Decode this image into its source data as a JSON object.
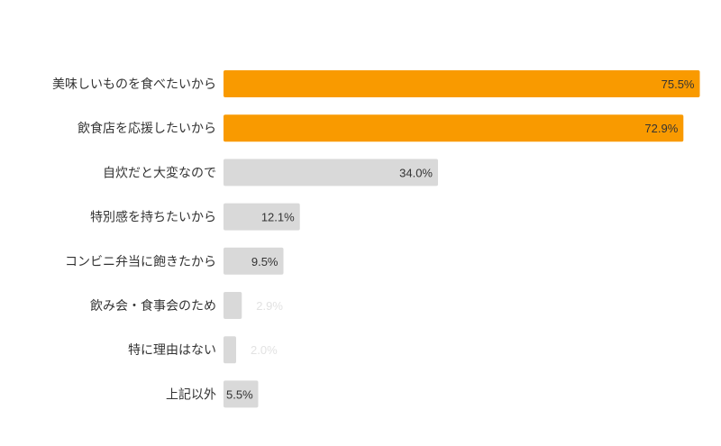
{
  "chart_data": {
    "type": "bar",
    "orientation": "horizontal",
    "categories": [
      "美味しいものを食べたいから",
      "飲食店を応援したいから",
      "自炊だと大変なので",
      "特別感を持ちたいから",
      "コンビニ弁当に飽きたから",
      "飲み会・食事会のため",
      "特に理由はない",
      "上記以外"
    ],
    "values": [
      75.5,
      72.9,
      34.0,
      12.1,
      9.5,
      2.9,
      2.0,
      5.5
    ],
    "value_labels": [
      "75.5%",
      "72.9%",
      "34.0%",
      "12.1%",
      "9.5%",
      "2.9%",
      "2.0%",
      "5.5%"
    ],
    "highlight_threshold": 50,
    "xlim": [
      0,
      80
    ],
    "grid": false,
    "colors": {
      "highlight": "#f99a00",
      "default": "#d9d9d9",
      "label_inside": "#333333",
      "label_outside": "#e2e2e2"
    }
  }
}
